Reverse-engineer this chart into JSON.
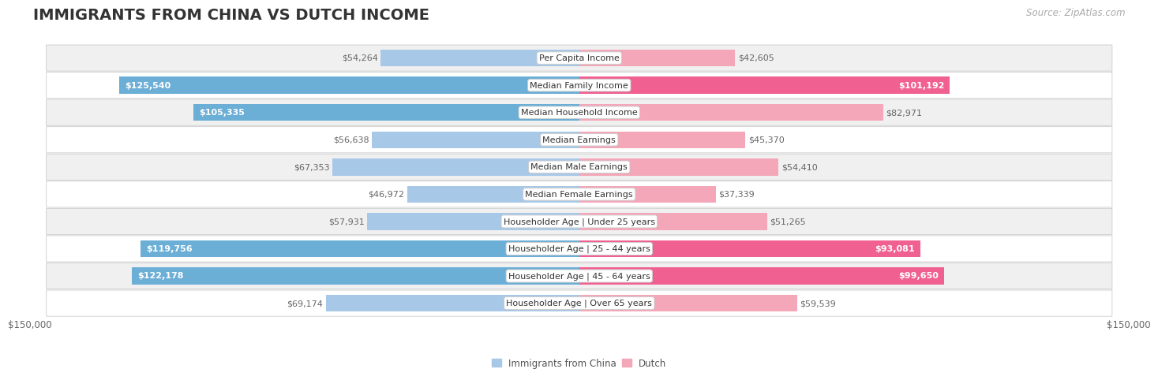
{
  "title": "IMMIGRANTS FROM CHINA VS DUTCH INCOME",
  "source": "Source: ZipAtlas.com",
  "categories": [
    "Per Capita Income",
    "Median Family Income",
    "Median Household Income",
    "Median Earnings",
    "Median Male Earnings",
    "Median Female Earnings",
    "Householder Age | Under 25 years",
    "Householder Age | 25 - 44 years",
    "Householder Age | 45 - 64 years",
    "Householder Age | Over 65 years"
  ],
  "china_values": [
    54264,
    125540,
    105335,
    56638,
    67353,
    46972,
    57931,
    119756,
    122178,
    69174
  ],
  "dutch_values": [
    42605,
    101192,
    82971,
    45370,
    54410,
    37339,
    51265,
    93081,
    99650,
    59539
  ],
  "china_color_normal": "#a8c8e8",
  "china_color_highlight": "#6baed6",
  "dutch_color_normal": "#f4a7b9",
  "dutch_color_highlight": "#f06090",
  "china_highlight_threshold": 100000,
  "dutch_highlight_threshold": 90000,
  "label_inside_color": "#ffffff",
  "label_outside_color": "#666666",
  "bg_color_light": "#f0f0f0",
  "bg_color_white": "#ffffff",
  "row_border_color": "#cccccc",
  "max_value": 150000,
  "legend_china": "Immigrants from China",
  "legend_dutch": "Dutch",
  "xlabel_left": "$150,000",
  "xlabel_right": "$150,000",
  "title_fontsize": 14,
  "source_fontsize": 8.5,
  "label_fontsize": 8,
  "category_fontsize": 8,
  "axis_fontsize": 8.5,
  "legend_fontsize": 8.5,
  "bar_height": 0.62
}
